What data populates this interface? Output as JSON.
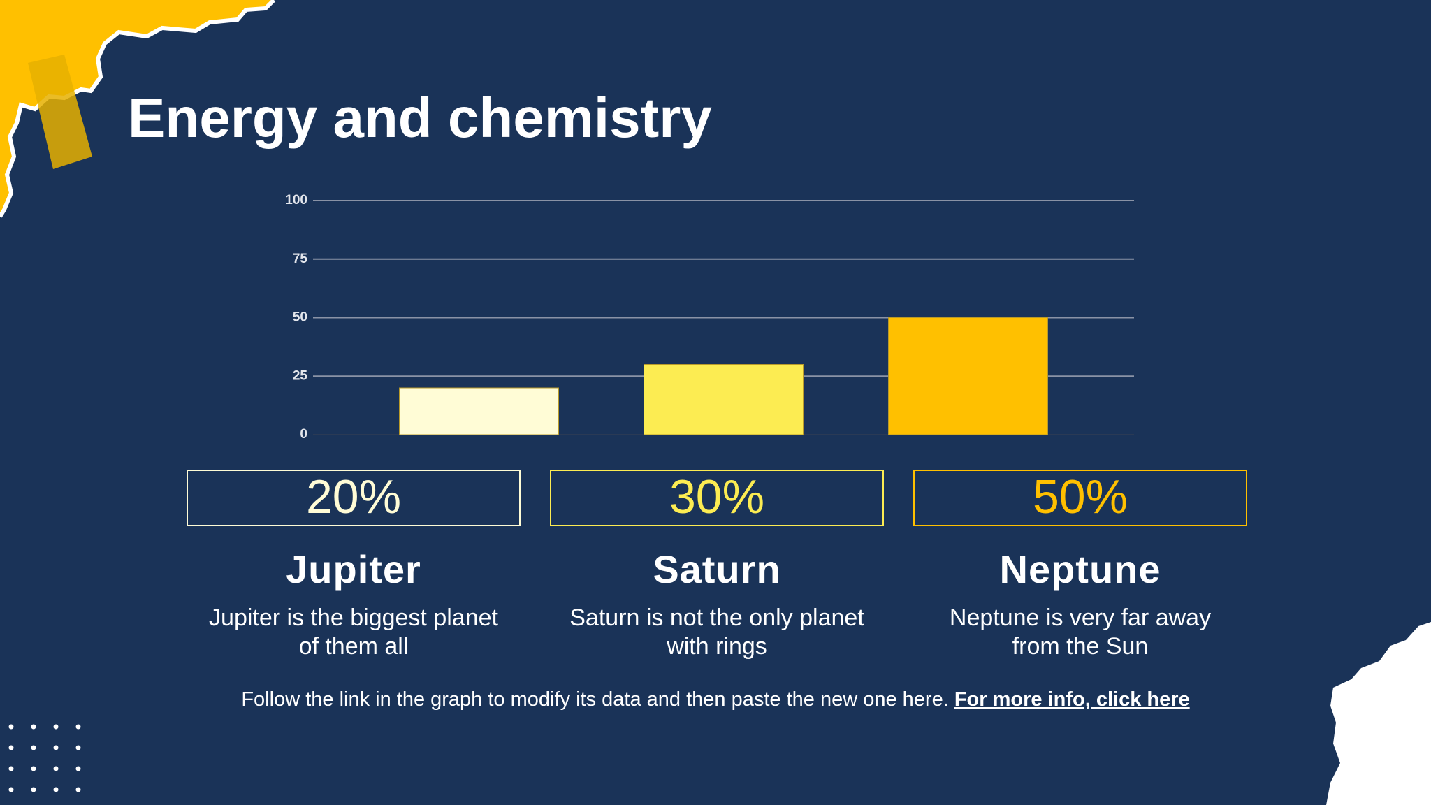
{
  "chart_data": {
    "type": "bar",
    "title": "Energy and chemistry",
    "categories": [
      "Jupiter",
      "Saturn",
      "Neptune"
    ],
    "values": [
      20,
      30,
      50
    ],
    "value_labels": [
      "20%",
      "30%",
      "50%"
    ],
    "colors": [
      "#fffcd6",
      "#fcec52",
      "#ffc000"
    ],
    "descriptions": [
      [
        "Jupiter is the biggest planet",
        "of them all"
      ],
      [
        "Saturn is not the only planet",
        "with rings"
      ],
      [
        "Neptune is very far away",
        "from the Sun"
      ]
    ],
    "ylim": [
      0,
      100
    ],
    "yticks": [
      0,
      25,
      50,
      75,
      100
    ],
    "grid": true,
    "note": "Follow the link in the graph to modify its data and then paste the new one here.",
    "link_text": "For more info, click here"
  }
}
